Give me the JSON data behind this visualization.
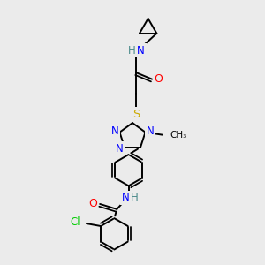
{
  "bg_color": "#ebebeb",
  "colors": {
    "N": "#0000ff",
    "O": "#ff0000",
    "S": "#ccaa00",
    "Cl": "#00cc00",
    "C": "#000000",
    "H": "#4a8a8a",
    "bond": "#000000",
    "bg": "#ebebeb"
  },
  "bond_lw": 1.4,
  "font_size": 8.5
}
